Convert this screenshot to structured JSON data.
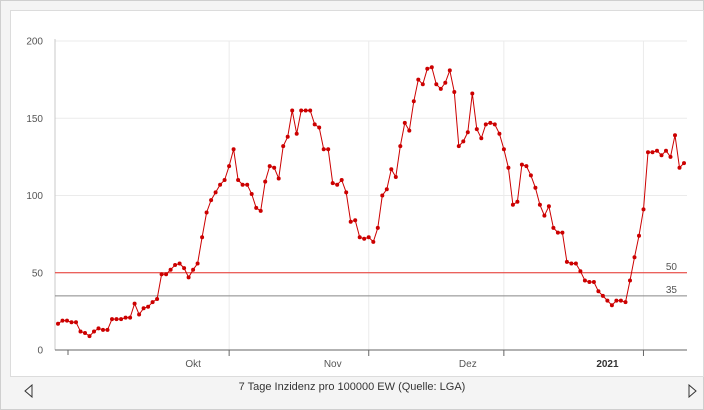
{
  "chart_data": {
    "type": "line",
    "title": "",
    "xlabel": "7 Tage Inzidenz pro 100000 EW (Quelle: LGA)",
    "ylabel": "",
    "ylim": [
      0,
      200
    ],
    "yticks": [
      0,
      50,
      100,
      150,
      200
    ],
    "grid": true,
    "x_ticks": [
      {
        "label": "Okt",
        "day": 30,
        "bold": false
      },
      {
        "label": "Nov",
        "day": 61,
        "bold": false
      },
      {
        "label": "Dez",
        "day": 91,
        "bold": false
      },
      {
        "label": "2021",
        "day": 122,
        "bold": true
      }
    ],
    "major_ticks": [
      38,
      69,
      99,
      130
    ],
    "reference_lines": [
      {
        "value": 50,
        "label": "50",
        "color": "#e8312a"
      },
      {
        "value": 35,
        "label": "35",
        "color": "#888888"
      }
    ],
    "series": [
      {
        "color": "#cc0000",
        "values": [
          17,
          19,
          19,
          18,
          18,
          12,
          11,
          9,
          12,
          14,
          13,
          13,
          20,
          20,
          20,
          21,
          21,
          30,
          23,
          27,
          28,
          31,
          33,
          49,
          49,
          52,
          55,
          56,
          53,
          47,
          52,
          56,
          73,
          89,
          97,
          102,
          107,
          110,
          119,
          130,
          110,
          107,
          107,
          101,
          92,
          90,
          109,
          119,
          118,
          111,
          132,
          138,
          155,
          140,
          155,
          155,
          155,
          146,
          144,
          130,
          130,
          108,
          107,
          110,
          102,
          83,
          84,
          73,
          72,
          73,
          70,
          79,
          100,
          104,
          117,
          112,
          132,
          147,
          142,
          161,
          175,
          172,
          182,
          183,
          172,
          169,
          173,
          181,
          167,
          132,
          135,
          141,
          166,
          143,
          137,
          146,
          147,
          146,
          140,
          130,
          118,
          94,
          96,
          120,
          119,
          113,
          105,
          94,
          87,
          93,
          79,
          76,
          76,
          57,
          56,
          56,
          51,
          45,
          44,
          44,
          38,
          35,
          32,
          29,
          32,
          32,
          31,
          45,
          60,
          74,
          91,
          128,
          128,
          129,
          126,
          129,
          125,
          139,
          118,
          121
        ]
      }
    ]
  },
  "caption": "7 Tage Inzidenz pro 100000 EW (Quelle: LGA)",
  "nav": {
    "prev_icon": "triangle-left-icon",
    "next_icon": "triangle-right-icon"
  }
}
